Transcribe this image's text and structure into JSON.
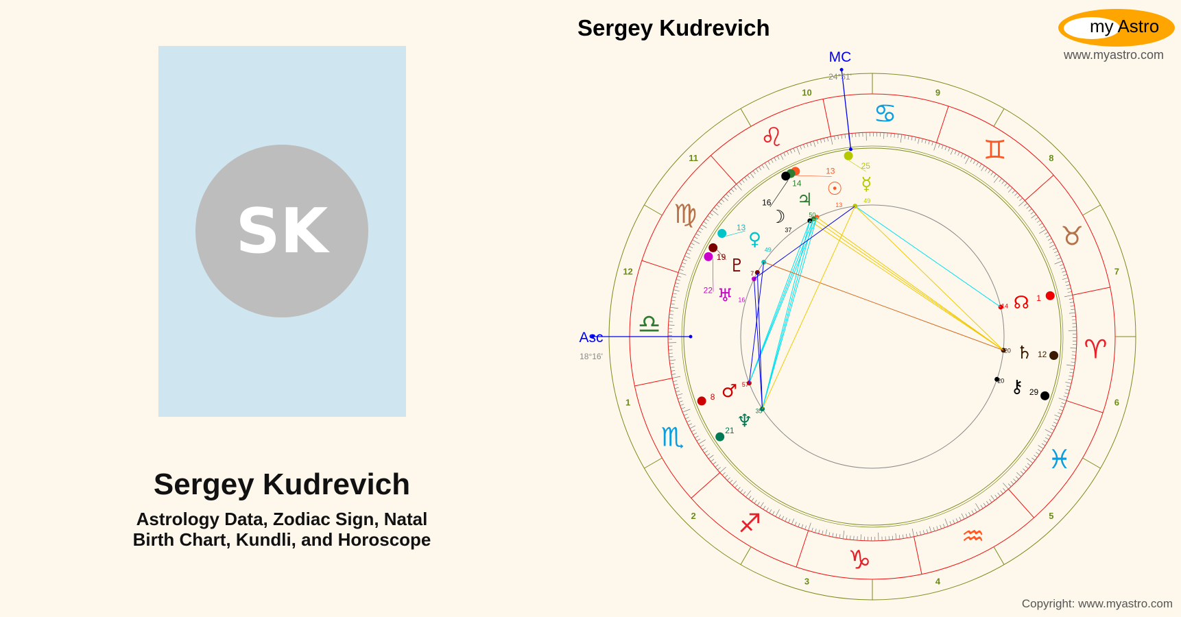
{
  "profile": {
    "initials": "SK",
    "name": "Sergey Kudrevich",
    "subtitle_line1": "Astrology Data, Zodiac Sign, Natal",
    "subtitle_line2": "Birth Chart, Kundli, and Horoscope"
  },
  "chart_title": "Sergey Kudrevich",
  "logo": {
    "my": "my",
    "astro": "Astro",
    "url": "www.myastro.com"
  },
  "copyright": "Copyright: www.myastro.com",
  "angles": {
    "asc_label": "Asc",
    "asc_degree": "18°16'",
    "mc_label": "MC",
    "mc_degree": "24°51'",
    "asc_lon": 198.27,
    "mc_lon": 114.85
  },
  "signs": [
    {
      "name": "Aries",
      "glyph": "♈",
      "color": "#e8202a"
    },
    {
      "name": "Taurus",
      "glyph": "♉",
      "color": "#b5714a"
    },
    {
      "name": "Gemini",
      "glyph": "♊",
      "color": "#ff5722"
    },
    {
      "name": "Cancer",
      "glyph": "♋",
      "color": "#0a9ee0"
    },
    {
      "name": "Leo",
      "glyph": "♌",
      "color": "#e8202a"
    },
    {
      "name": "Virgo",
      "glyph": "♍",
      "color": "#b5714a"
    },
    {
      "name": "Libra",
      "glyph": "♎",
      "color": "#2e7d32"
    },
    {
      "name": "Scorpio",
      "glyph": "♏",
      "color": "#0a9ee0"
    },
    {
      "name": "Sagittarius",
      "glyph": "♐",
      "color": "#e8202a"
    },
    {
      "name": "Capricorn",
      "glyph": "♑",
      "color": "#e8202a"
    },
    {
      "name": "Aquarius",
      "glyph": "♒",
      "color": "#ff5722"
    },
    {
      "name": "Pisces",
      "glyph": "♓",
      "color": "#0a9ee0"
    }
  ],
  "houses": [
    "1",
    "2",
    "3",
    "4",
    "5",
    "6",
    "7",
    "8",
    "9",
    "10",
    "11",
    "12"
  ],
  "planets": [
    {
      "name": "Sun",
      "glyph": "☉",
      "sign": 4,
      "deg": "13",
      "min": "13",
      "color": "#ff5722"
    },
    {
      "name": "Jupiter",
      "glyph": "♃",
      "sign": 4,
      "deg": "14",
      "min": "50",
      "color": "#2e7d32"
    },
    {
      "name": "Moon",
      "glyph": "☽",
      "sign": 4,
      "deg": "16",
      "min": "37",
      "color": "#000000"
    },
    {
      "name": "Mercury",
      "glyph": "☿",
      "sign": 3,
      "deg": "25",
      "min": "49",
      "color": "#b5c800"
    },
    {
      "name": "Venus",
      "glyph": "♀",
      "sign": 5,
      "deg": "13",
      "min": "49",
      "color": "#00c4c8"
    },
    {
      "name": "Pluto",
      "glyph": "♇",
      "sign": 5,
      "deg": "19",
      "min": "7",
      "color": "#7b0000"
    },
    {
      "name": "Uranus",
      "glyph": "♅",
      "sign": 5,
      "deg": "22",
      "min": "16",
      "color": "#cc00cc"
    },
    {
      "name": "Mars",
      "glyph": "♂",
      "sign": 7,
      "deg": "8",
      "min": "57",
      "color": "#cc0000"
    },
    {
      "name": "Neptune",
      "glyph": "♆",
      "sign": 7,
      "deg": "21",
      "min": "35",
      "color": "#007a55"
    },
    {
      "name": "North Node",
      "glyph": "☊",
      "sign": 1,
      "deg": "1",
      "min": "14",
      "color": "#ee0000"
    },
    {
      "name": "Saturn",
      "glyph": "♄",
      "sign": 0,
      "deg": "12",
      "min": "20",
      "color": "#3a1a00"
    },
    {
      "name": "Chiron",
      "glyph": "⚷",
      "sign": 11,
      "deg": "29",
      "min": "20",
      "color": "#000000"
    }
  ],
  "aspect_colors": {
    "trine": "#f0c800",
    "square": "#00e0f0",
    "sextile": "#0000ee",
    "quincunx": "#d2691e"
  },
  "aspects": [
    [
      "Mercury",
      "North Node",
      "square"
    ],
    [
      "Mercury",
      "Saturn",
      "trine"
    ],
    [
      "Sun",
      "Saturn",
      "trine"
    ],
    [
      "Jupiter",
      "Saturn",
      "trine"
    ],
    [
      "Moon",
      "Saturn",
      "trine"
    ],
    [
      "Sun",
      "Neptune",
      "square"
    ],
    [
      "Jupiter",
      "Neptune",
      "square"
    ],
    [
      "Moon",
      "Neptune",
      "square"
    ],
    [
      "Sun",
      "Mars",
      "square"
    ],
    [
      "Jupiter",
      "Mars",
      "square"
    ],
    [
      "Moon",
      "Mars",
      "square"
    ],
    [
      "Mercury",
      "Uranus",
      "sextile"
    ],
    [
      "Venus",
      "Saturn",
      "quincunx"
    ],
    [
      "Uranus",
      "Neptune",
      "sextile"
    ],
    [
      "Pluto",
      "Neptune",
      "sextile"
    ],
    [
      "Venus",
      "Mars",
      "sextile"
    ],
    [
      "Mercury",
      "Neptune",
      "trine"
    ]
  ]
}
